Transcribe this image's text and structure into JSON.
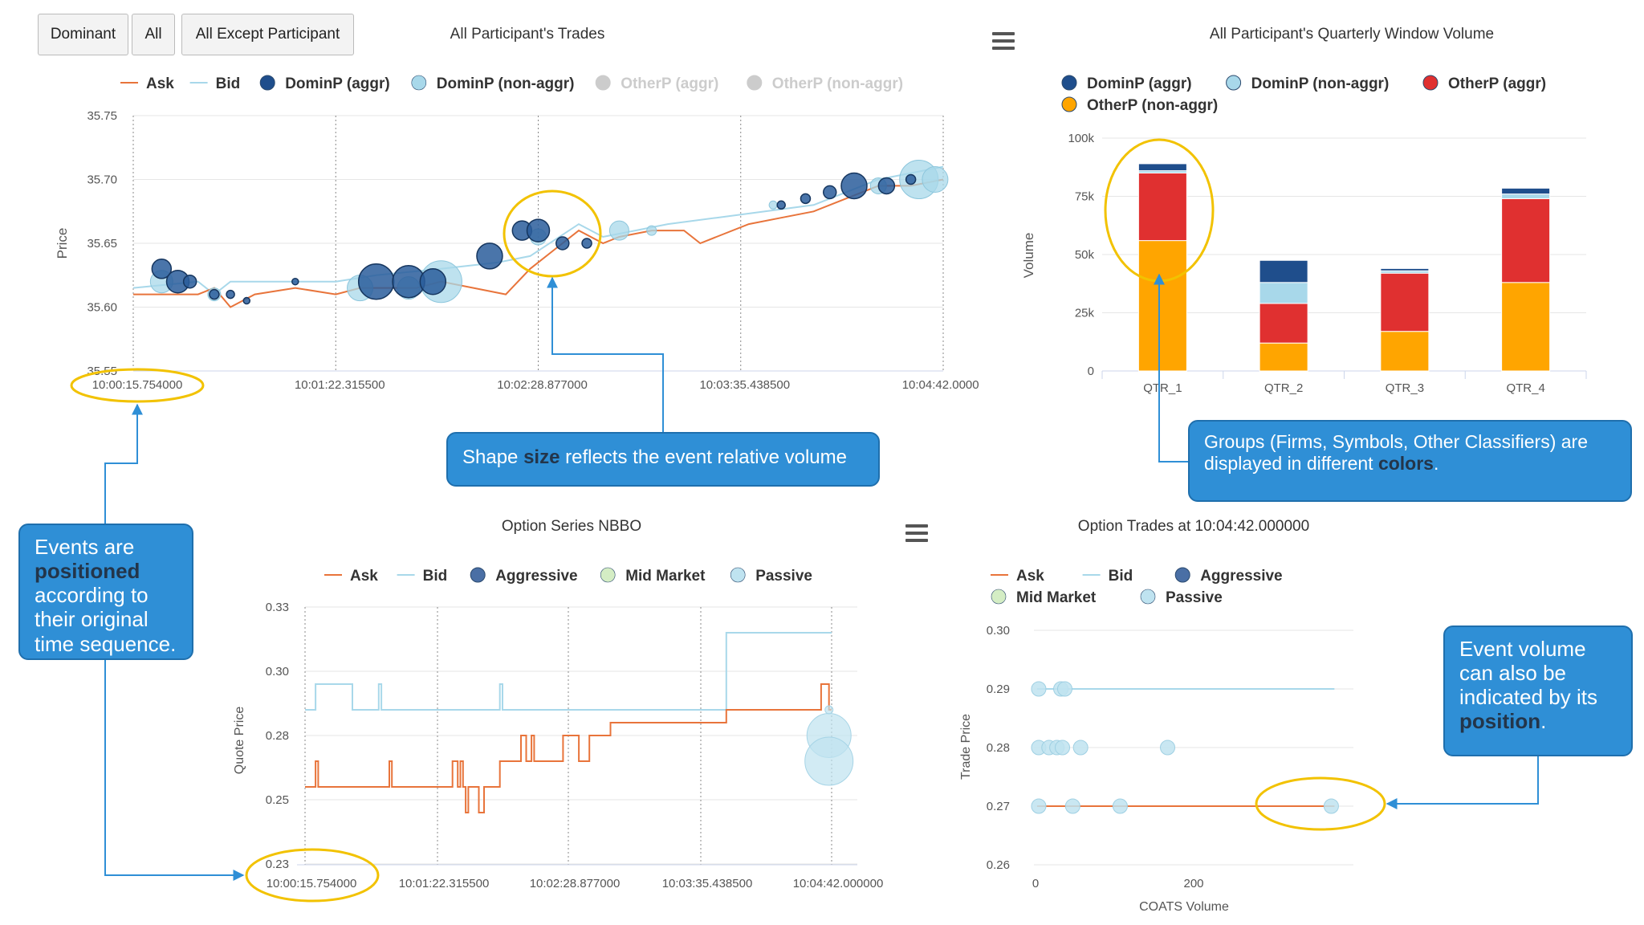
{
  "buttons": [
    "Dominant",
    "All",
    "All Except Participant"
  ],
  "colors": {
    "ask": "#e8743b",
    "bid": "#a8d8ea",
    "dom_aggr": "#1f4e8c",
    "dom_nonaggr": "#a8d8ea",
    "other_aggr": "#e03030",
    "other_nonaggr": "#ffa500",
    "legend_off": "#cccccc",
    "aggressive": "#4a6fa5",
    "mid_market": "#d4edc4",
    "passive": "#bfe3f0",
    "highlight": "#f2c200",
    "callout": "#2f8fd6",
    "connector": "#2f8fd6"
  },
  "callouts": {
    "size": {
      "pre": "Shape ",
      "bold": "size",
      "post": " reflects  the event relative volume"
    },
    "colors": {
      "pre": "Groups (Firms, Symbols, Other Classifiers)  are displayed in different ",
      "bold": "colors",
      "post": "."
    },
    "position": {
      "pre": "Events are ",
      "bold": "positioned",
      "post": " according to their original time sequence."
    },
    "volume": {
      "pre": "Event volume can also be indicated by its ",
      "bold": "position",
      "post": "."
    }
  },
  "chart_data": [
    {
      "type": "scatter",
      "title": "All Participant's Trades",
      "ylabel": "Price",
      "ylim": [
        35.55,
        35.75
      ],
      "yticks": [
        "35.75",
        "35.70",
        "35.65",
        "35.60",
        "35.55"
      ],
      "xticks": [
        "10:00:15.754000",
        "10:01:22.315500",
        "10:02:28.877000",
        "10:03:35.438500",
        "10:04:42.000000"
      ],
      "legend": [
        {
          "name": "Ask",
          "shape": "line",
          "color": "#e8743b"
        },
        {
          "name": "Bid",
          "shape": "line",
          "color": "#a8d8ea"
        },
        {
          "name": "DominP (aggr)",
          "shape": "dot",
          "color": "#1f4e8c"
        },
        {
          "name": "DominP (non-aggr)",
          "shape": "dot",
          "color": "#a8d8ea"
        },
        {
          "name": "OtherP (aggr)",
          "shape": "dot",
          "color": "#cccccc",
          "off": true
        },
        {
          "name": "OtherP (non-aggr)",
          "shape": "dot",
          "color": "#cccccc",
          "off": true
        }
      ],
      "ask": [
        [
          0,
          35.61
        ],
        [
          0.08,
          35.61
        ],
        [
          0.1,
          35.615
        ],
        [
          0.12,
          35.6
        ],
        [
          0.15,
          35.61
        ],
        [
          0.2,
          35.615
        ],
        [
          0.25,
          35.61
        ],
        [
          0.28,
          35.615
        ],
        [
          0.35,
          35.615
        ],
        [
          0.38,
          35.62
        ],
        [
          0.42,
          35.615
        ],
        [
          0.46,
          35.61
        ],
        [
          0.49,
          35.63
        ],
        [
          0.52,
          35.645
        ],
        [
          0.55,
          35.66
        ],
        [
          0.58,
          35.65
        ],
        [
          0.6,
          35.655
        ],
        [
          0.64,
          35.66
        ],
        [
          0.68,
          35.66
        ],
        [
          0.7,
          35.65
        ],
        [
          0.72,
          35.655
        ],
        [
          0.76,
          35.665
        ],
        [
          0.8,
          35.67
        ],
        [
          0.84,
          35.675
        ],
        [
          0.88,
          35.685
        ],
        [
          0.92,
          35.695
        ],
        [
          0.96,
          35.695
        ],
        [
          1,
          35.7
        ]
      ],
      "bid": [
        [
          0,
          35.615
        ],
        [
          0.08,
          35.62
        ],
        [
          0.1,
          35.61
        ],
        [
          0.12,
          35.62
        ],
        [
          0.18,
          35.62
        ],
        [
          0.25,
          35.62
        ],
        [
          0.3,
          35.625
        ],
        [
          0.38,
          35.63
        ],
        [
          0.45,
          35.635
        ],
        [
          0.49,
          35.64
        ],
        [
          0.55,
          35.665
        ],
        [
          0.58,
          35.655
        ],
        [
          0.62,
          35.66
        ],
        [
          0.66,
          35.665
        ],
        [
          0.72,
          35.67
        ],
        [
          0.78,
          35.675
        ],
        [
          0.84,
          35.68
        ],
        [
          0.88,
          35.69
        ],
        [
          0.92,
          35.7
        ],
        [
          0.96,
          35.705
        ],
        [
          1,
          35.71
        ]
      ],
      "dominp_aggr": [
        [
          0.035,
          35.63,
          12
        ],
        [
          0.055,
          35.62,
          14
        ],
        [
          0.07,
          35.62,
          8
        ],
        [
          0.1,
          35.61,
          6
        ],
        [
          0.12,
          35.61,
          5
        ],
        [
          0.14,
          35.605,
          4
        ],
        [
          0.2,
          35.62,
          4
        ],
        [
          0.3,
          35.62,
          22
        ],
        [
          0.34,
          35.62,
          20
        ],
        [
          0.37,
          35.62,
          16
        ],
        [
          0.44,
          35.64,
          16
        ],
        [
          0.48,
          35.66,
          12
        ],
        [
          0.5,
          35.66,
          14
        ],
        [
          0.53,
          35.65,
          8
        ],
        [
          0.56,
          35.65,
          6
        ],
        [
          0.8,
          35.68,
          5
        ],
        [
          0.83,
          35.685,
          6
        ],
        [
          0.86,
          35.69,
          8
        ],
        [
          0.89,
          35.695,
          16
        ],
        [
          0.93,
          35.695,
          10
        ],
        [
          0.96,
          35.7,
          6
        ]
      ],
      "dominp_nonaggr": [
        [
          0.035,
          35.62,
          14
        ],
        [
          0.1,
          35.61,
          8
        ],
        [
          0.28,
          35.615,
          16
        ],
        [
          0.34,
          35.615,
          14
        ],
        [
          0.38,
          35.62,
          26
        ],
        [
          0.5,
          35.655,
          10
        ],
        [
          0.6,
          35.66,
          12
        ],
        [
          0.64,
          35.66,
          6
        ],
        [
          0.79,
          35.68,
          5
        ],
        [
          0.92,
          35.695,
          10
        ],
        [
          0.97,
          35.7,
          24
        ],
        [
          0.99,
          35.7,
          16
        ]
      ]
    },
    {
      "type": "bar",
      "title": "All Participant's Quarterly Window Volume",
      "ylabel": "Volume",
      "ylim": [
        0,
        100000
      ],
      "yticks": [
        "100k",
        "75k",
        "50k",
        "25k",
        "0"
      ],
      "categories": [
        "QTR_1",
        "QTR_2",
        "QTR_3",
        "QTR_4"
      ],
      "legend": [
        {
          "name": "DominP (aggr)",
          "color": "#1f4e8c"
        },
        {
          "name": "DominP (non-aggr)",
          "color": "#a8d8ea"
        },
        {
          "name": "OtherP (aggr)",
          "color": "#e03030"
        },
        {
          "name": "OtherP (non-aggr)",
          "color": "#ffa500"
        }
      ],
      "series": [
        {
          "name": "OtherP (non-aggr)",
          "color": "#ffa500",
          "values": [
            56000,
            12000,
            17000,
            38000
          ]
        },
        {
          "name": "OtherP (aggr)",
          "color": "#e03030",
          "values": [
            29000,
            17000,
            25000,
            36000
          ]
        },
        {
          "name": "DominP (non-aggr)",
          "color": "#a8d8ea",
          "values": [
            1000,
            9000,
            1000,
            2000
          ]
        },
        {
          "name": "DominP (aggr)",
          "color": "#1f4e8c",
          "values": [
            3000,
            9500,
            1000,
            2500
          ]
        }
      ]
    },
    {
      "type": "line",
      "title": "Option Series NBBO",
      "ylabel": "Quote Price",
      "ylim": [
        0.23,
        0.33
      ],
      "yticks": [
        "0.33",
        "0.30",
        "0.28",
        "0.25",
        "0.23"
      ],
      "xticks": [
        "10:00:15.754000",
        "10:01:22.315500",
        "10:02:28.877000",
        "10:03:35.438500",
        "10:04:42.000000"
      ],
      "legend": [
        {
          "name": "Ask",
          "shape": "line",
          "color": "#e8743b"
        },
        {
          "name": "Bid",
          "shape": "line",
          "color": "#a8d8ea"
        },
        {
          "name": "Aggressive",
          "shape": "dot",
          "color": "#4a6fa5"
        },
        {
          "name": "Mid Market",
          "shape": "dot",
          "color": "#d4edc4"
        },
        {
          "name": "Passive",
          "shape": "dot",
          "color": "#bfe3f0"
        }
      ],
      "bid": [
        [
          0,
          0.29
        ],
        [
          0.02,
          0.29
        ],
        [
          0.02,
          0.3
        ],
        [
          0.09,
          0.3
        ],
        [
          0.09,
          0.29
        ],
        [
          0.14,
          0.29
        ],
        [
          0.14,
          0.3
        ],
        [
          0.145,
          0.3
        ],
        [
          0.145,
          0.29
        ],
        [
          0.37,
          0.29
        ],
        [
          0.37,
          0.3
        ],
        [
          0.375,
          0.3
        ],
        [
          0.375,
          0.29
        ],
        [
          0.8,
          0.29
        ],
        [
          0.8,
          0.32
        ],
        [
          1,
          0.32
        ]
      ],
      "ask": [
        [
          0,
          0.26
        ],
        [
          0.02,
          0.26
        ],
        [
          0.02,
          0.27
        ],
        [
          0.025,
          0.27
        ],
        [
          0.025,
          0.26
        ],
        [
          0.16,
          0.26
        ],
        [
          0.16,
          0.27
        ],
        [
          0.165,
          0.27
        ],
        [
          0.165,
          0.26
        ],
        [
          0.28,
          0.26
        ],
        [
          0.28,
          0.27
        ],
        [
          0.29,
          0.27
        ],
        [
          0.29,
          0.26
        ],
        [
          0.295,
          0.26
        ],
        [
          0.295,
          0.27
        ],
        [
          0.3,
          0.27
        ],
        [
          0.3,
          0.26
        ],
        [
          0.305,
          0.26
        ],
        [
          0.305,
          0.25
        ],
        [
          0.31,
          0.25
        ],
        [
          0.31,
          0.26
        ],
        [
          0.33,
          0.26
        ],
        [
          0.33,
          0.25
        ],
        [
          0.34,
          0.25
        ],
        [
          0.34,
          0.26
        ],
        [
          0.37,
          0.26
        ],
        [
          0.37,
          0.27
        ],
        [
          0.41,
          0.27
        ],
        [
          0.41,
          0.28
        ],
        [
          0.42,
          0.28
        ],
        [
          0.42,
          0.27
        ],
        [
          0.43,
          0.27
        ],
        [
          0.43,
          0.28
        ],
        [
          0.435,
          0.28
        ],
        [
          0.435,
          0.27
        ],
        [
          0.49,
          0.27
        ],
        [
          0.49,
          0.28
        ],
        [
          0.52,
          0.28
        ],
        [
          0.52,
          0.27
        ],
        [
          0.54,
          0.27
        ],
        [
          0.54,
          0.28
        ],
        [
          0.58,
          0.28
        ],
        [
          0.58,
          0.285
        ],
        [
          0.8,
          0.285
        ],
        [
          0.8,
          0.29
        ],
        [
          0.98,
          0.29
        ],
        [
          0.98,
          0.3
        ],
        [
          0.995,
          0.3
        ],
        [
          0.995,
          0.29
        ],
        [
          1,
          0.29
        ]
      ],
      "passive": [
        [
          0.995,
          0.28,
          22
        ],
        [
          0.995,
          0.27,
          24
        ],
        [
          0.995,
          0.29,
          4
        ]
      ]
    },
    {
      "type": "scatter",
      "title": "Option Trades at 10:04:42.000000",
      "xlabel": "COATS Volume",
      "ylabel": "Trade Price",
      "ylim": [
        0.26,
        0.3
      ],
      "xlim": [
        0,
        380
      ],
      "yticks": [
        "0.30",
        "0.29",
        "0.28",
        "0.27",
        "0.26"
      ],
      "xticks": [
        "0",
        "200"
      ],
      "legend": [
        {
          "name": "Ask",
          "shape": "line",
          "color": "#e8743b"
        },
        {
          "name": "Bid",
          "shape": "line",
          "color": "#a8d8ea"
        },
        {
          "name": "Aggressive",
          "shape": "dot",
          "color": "#4a6fa5"
        },
        {
          "name": "Mid Market",
          "shape": "dot",
          "color": "#d4edc4"
        },
        {
          "name": "Passive",
          "shape": "dot",
          "color": "#bfe3f0"
        }
      ],
      "bid_y": 0.29,
      "ask_y": 0.27,
      "passive": [
        [
          2,
          0.29
        ],
        [
          30,
          0.29
        ],
        [
          35,
          0.29
        ],
        [
          2,
          0.28
        ],
        [
          15,
          0.28
        ],
        [
          25,
          0.28
        ],
        [
          32,
          0.28
        ],
        [
          55,
          0.28
        ],
        [
          165,
          0.28
        ],
        [
          2,
          0.27
        ],
        [
          45,
          0.27
        ],
        [
          105,
          0.27
        ],
        [
          372,
          0.27
        ]
      ]
    }
  ]
}
